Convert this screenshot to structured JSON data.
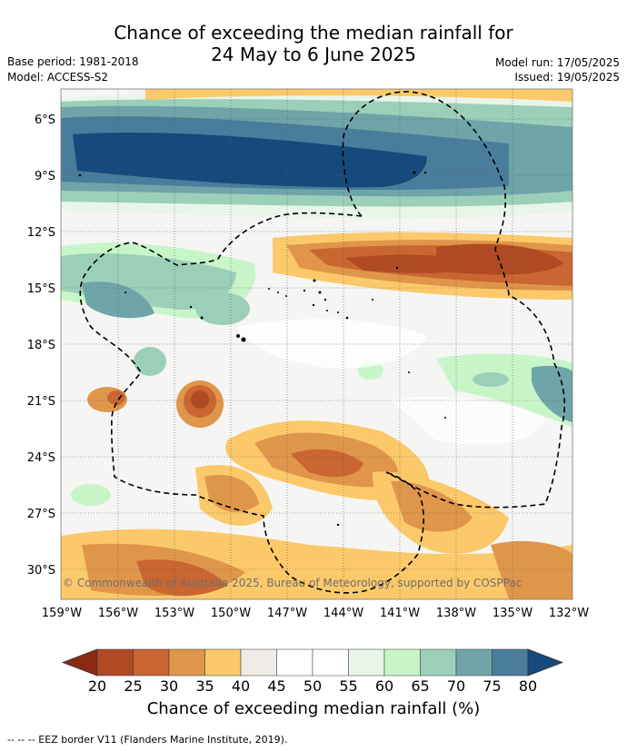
{
  "title": {
    "line1": "Chance of exceeding the median rainfall for",
    "line2": "24 May to 6 June 2025"
  },
  "meta": {
    "base_period": "Base period: 1981-2018",
    "model": "Model: ACCESS-S2",
    "model_run": "Model run: 17/05/2025",
    "issued": "Issued: 19/05/2025"
  },
  "map": {
    "copyright": "© Commonwealth of Australia 2025, Bureau of Meteorology, supported by COSPPac",
    "lat_labels": [
      "6°S",
      "9°S",
      "12°S",
      "15°S",
      "18°S",
      "21°S",
      "24°S",
      "27°S",
      "30°S"
    ],
    "lon_labels": [
      "159°W",
      "156°W",
      "153°W",
      "150°W",
      "147°W",
      "144°W",
      "141°W",
      "138°W",
      "135°W",
      "132°W"
    ]
  },
  "legend": {
    "ticks": [
      "20",
      "25",
      "30",
      "35",
      "40",
      "45",
      "50",
      "55",
      "60",
      "65",
      "70",
      "75",
      "80"
    ],
    "colors": [
      "#8b2a12",
      "#b04a24",
      "#ca6632",
      "#e0964a",
      "#fcc96a",
      "#f0ebe6",
      "#ffffff",
      "#ffffff",
      "#e8f5e8",
      "#c8f5c8",
      "#9ccfba",
      "#6fa5a8",
      "#4a7d9c",
      "#174a7c"
    ],
    "label": "Chance of exceeding median rainfall (%)",
    "footnote": "--  --  -- EEZ border V11 (Flanders Marine Institute, 2019)."
  }
}
